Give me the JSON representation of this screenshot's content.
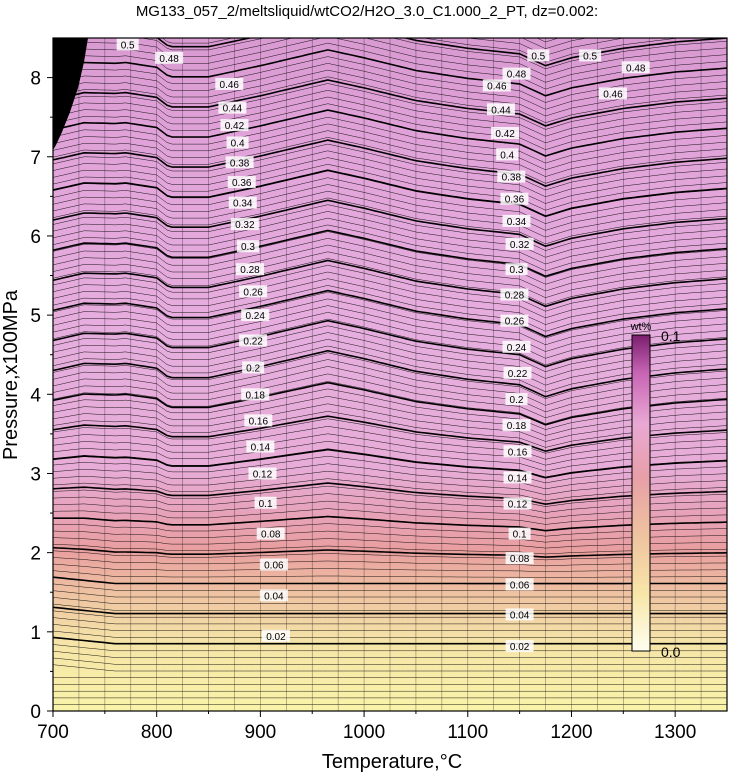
{
  "chart_data": {
    "type": "contour",
    "title": "MG133_057_2/meltsliquid/wtCO2/H2O_3.0_C1.000_2_PT, dz=0.002:",
    "xlabel": "Temperature,°C",
    "ylabel": "Pressure,x100MPa",
    "xlim": [
      700,
      1350
    ],
    "ylim": [
      0,
      8.5
    ],
    "x_ticks": [
      700,
      800,
      900,
      1000,
      1100,
      1200,
      1300
    ],
    "y_ticks": [
      0,
      1,
      2,
      3,
      4,
      5,
      6,
      7,
      8
    ],
    "contour_interval": 0.002,
    "major_interval": 0.02,
    "colorbar": {
      "unit": "wt%",
      "min_label": "0.0",
      "max_label": "0.1",
      "colors": [
        "#fffff0",
        "#f8e6a8",
        "#eec0a0",
        "#e79fa8",
        "#e9a8d4",
        "#c864b4",
        "#7a1e6e"
      ]
    },
    "contour_labels": [
      {
        "value": "0.5",
        "x": 772,
        "y": 8.42
      },
      {
        "value": "0.48",
        "x": 812,
        "y": 8.25
      },
      {
        "value": "0.46",
        "x": 870,
        "y": 7.92
      },
      {
        "value": "0.44",
        "x": 873,
        "y": 7.62
      },
      {
        "value": "0.42",
        "x": 875,
        "y": 7.4
      },
      {
        "value": "0.4",
        "x": 878,
        "y": 7.18
      },
      {
        "value": "0.38",
        "x": 880,
        "y": 6.93
      },
      {
        "value": "0.36",
        "x": 882,
        "y": 6.68
      },
      {
        "value": "0.34",
        "x": 883,
        "y": 6.42
      },
      {
        "value": "0.32",
        "x": 885,
        "y": 6.15
      },
      {
        "value": "0.3",
        "x": 888,
        "y": 5.87
      },
      {
        "value": "0.28",
        "x": 890,
        "y": 5.58
      },
      {
        "value": "0.26",
        "x": 893,
        "y": 5.3
      },
      {
        "value": "0.24",
        "x": 895,
        "y": 5.0
      },
      {
        "value": "0.22",
        "x": 893,
        "y": 4.68
      },
      {
        "value": "0.2",
        "x": 893,
        "y": 4.34
      },
      {
        "value": "0.18",
        "x": 895,
        "y": 4.0
      },
      {
        "value": "0.16",
        "x": 898,
        "y": 3.67
      },
      {
        "value": "0.14",
        "x": 900,
        "y": 3.34
      },
      {
        "value": "0.12",
        "x": 902,
        "y": 3.0
      },
      {
        "value": "0.1",
        "x": 905,
        "y": 2.63
      },
      {
        "value": "0.08",
        "x": 910,
        "y": 2.24
      },
      {
        "value": "0.06",
        "x": 913,
        "y": 1.85
      },
      {
        "value": "0.04",
        "x": 913,
        "y": 1.46
      },
      {
        "value": "0.02",
        "x": 915,
        "y": 0.95
      },
      {
        "value": "0.48",
        "x": 1147,
        "y": 8.05
      },
      {
        "value": "0.46",
        "x": 1128,
        "y": 7.9
      },
      {
        "value": "0.44",
        "x": 1132,
        "y": 7.6
      },
      {
        "value": "0.42",
        "x": 1136,
        "y": 7.3
      },
      {
        "value": "0.4",
        "x": 1138,
        "y": 7.03
      },
      {
        "value": "0.38",
        "x": 1142,
        "y": 6.75
      },
      {
        "value": "0.36",
        "x": 1145,
        "y": 6.47
      },
      {
        "value": "0.34",
        "x": 1147,
        "y": 6.19
      },
      {
        "value": "0.32",
        "x": 1150,
        "y": 5.9
      },
      {
        "value": "0.3",
        "x": 1147,
        "y": 5.58
      },
      {
        "value": "0.28",
        "x": 1145,
        "y": 5.26
      },
      {
        "value": "0.26",
        "x": 1145,
        "y": 4.93
      },
      {
        "value": "0.24",
        "x": 1147,
        "y": 4.6
      },
      {
        "value": "0.22",
        "x": 1148,
        "y": 4.27
      },
      {
        "value": "0.2",
        "x": 1147,
        "y": 3.94
      },
      {
        "value": "0.18",
        "x": 1147,
        "y": 3.61
      },
      {
        "value": "0.16",
        "x": 1148,
        "y": 3.28
      },
      {
        "value": "0.14",
        "x": 1148,
        "y": 2.95
      },
      {
        "value": "0.12",
        "x": 1148,
        "y": 2.62
      },
      {
        "value": "0.1",
        "x": 1150,
        "y": 2.24
      },
      {
        "value": "0.08",
        "x": 1150,
        "y": 1.93
      },
      {
        "value": "0.06",
        "x": 1150,
        "y": 1.6
      },
      {
        "value": "0.04",
        "x": 1150,
        "y": 1.22
      },
      {
        "value": "0.02",
        "x": 1150,
        "y": 0.82
      },
      {
        "value": "0.5",
        "x": 1168,
        "y": 8.28
      },
      {
        "value": "0.5",
        "x": 1218,
        "y": 8.28
      },
      {
        "value": "0.48",
        "x": 1262,
        "y": 8.13
      },
      {
        "value": "0.46",
        "x": 1240,
        "y": 7.8
      }
    ]
  }
}
